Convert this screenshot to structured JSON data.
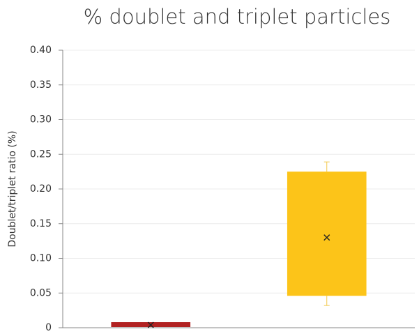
{
  "chart_data": {
    "type": "box",
    "title": "% doublet and triplet particles",
    "y_label": "Doublet/triplet ratio (%)",
    "categories": [
      null,
      null
    ],
    "boxes": [
      {
        "color": "#b22222",
        "q1": 0.001,
        "q3": 0.008,
        "mean": 0.004
      },
      {
        "color": "#fcc419",
        "whisker_color": "#f2c94c",
        "min": 0.032,
        "q1": 0.046,
        "q3": 0.225,
        "max": 0.239,
        "mean": 0.13
      }
    ],
    "ylim": [
      0,
      0.4
    ],
    "yticks": [
      {
        "value": 0,
        "label": "0"
      },
      0.05,
      {
        "value": 0.1,
        "label": "0.10"
      },
      0.15,
      {
        "value": 0.2,
        "label": "0.20"
      },
      0.25,
      {
        "value": 0.3,
        "label": "0.30"
      },
      0.35,
      {
        "value": 0.4,
        "label": "0.40"
      }
    ],
    "grid": true
  }
}
